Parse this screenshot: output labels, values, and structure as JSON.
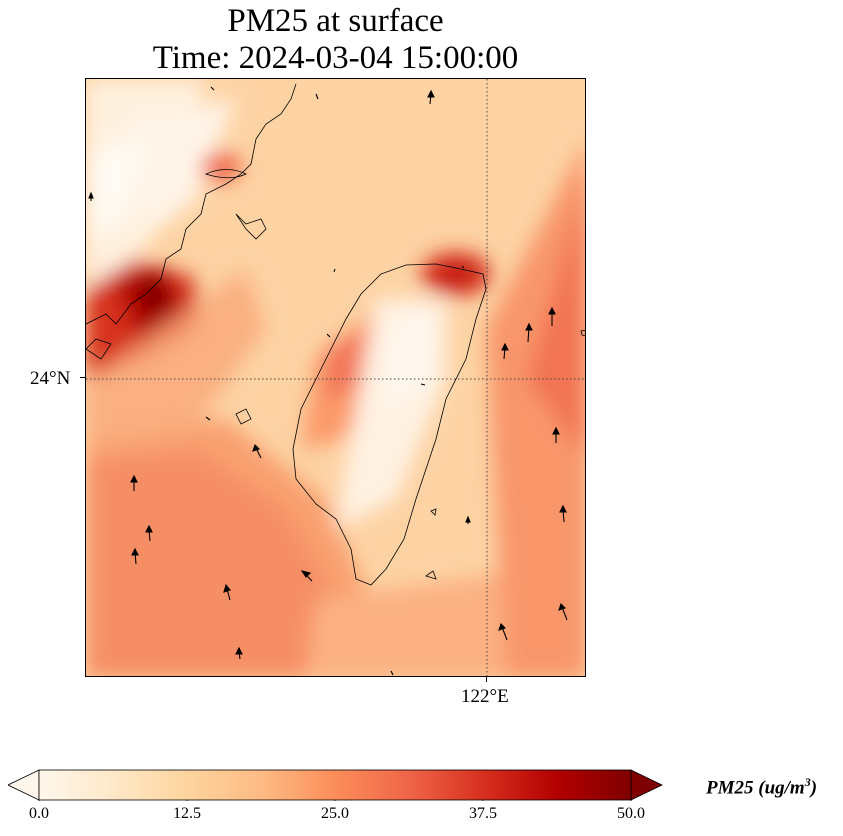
{
  "title": {
    "line1": "PM25 at surface",
    "line2": "Time: 2024-03-04 15:00:00"
  },
  "map": {
    "region": "Taiwan Strait",
    "latitude_ticks": [
      {
        "value": 24,
        "label": "24°N"
      }
    ],
    "longitude_ticks": [
      {
        "value": 122,
        "label": "122°E"
      }
    ],
    "gridlines": "dotted",
    "wind_vectors": "shown"
  },
  "colorbar": {
    "variable": "PM25",
    "unit": "(ug/m",
    "unit_exp": "3",
    "unit_close": ")",
    "min": 0.0,
    "max": 50.0,
    "extend": "both",
    "ticks": [
      "0.0",
      "12.5",
      "25.0",
      "37.5",
      "50.0"
    ],
    "colormap": "OrRd",
    "colors": [
      "#fff7ec",
      "#fee8c8",
      "#fdd49e",
      "#fdbb84",
      "#fc8d59",
      "#ef6548",
      "#d7301f",
      "#b30000",
      "#7f0000"
    ]
  }
}
